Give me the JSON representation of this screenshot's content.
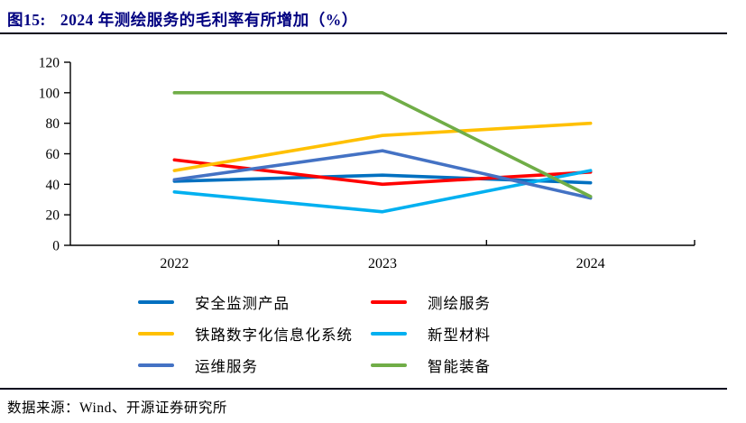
{
  "header": {
    "figure_label": "图15:",
    "title": "2024 年测绘服务的毛利率有所增加（%）"
  },
  "footer": {
    "source": "数据来源：Wind、开源证券研究所"
  },
  "chart_data": {
    "type": "line",
    "categories": [
      "2022",
      "2023",
      "2024"
    ],
    "series": [
      {
        "name": "安全监测产品",
        "color": "#0070C0",
        "values": [
          42,
          46,
          41
        ]
      },
      {
        "name": "测绘服务",
        "color": "#FF0000",
        "values": [
          56,
          40,
          48
        ]
      },
      {
        "name": "铁路数字化信息化系统",
        "color": "#FFC000",
        "values": [
          49,
          72,
          80
        ]
      },
      {
        "name": "新型材料",
        "color": "#00B0F0",
        "values": [
          35,
          22,
          49
        ]
      },
      {
        "name": "运维服务",
        "color": "#4472C4",
        "values": [
          43,
          62,
          31
        ]
      },
      {
        "name": "智能装备",
        "color": "#70AD47",
        "values": [
          100,
          100,
          32
        ]
      }
    ],
    "title": "2024 年测绘服务的毛利率有所增加（%）",
    "xlabel": "",
    "ylabel": "",
    "ylim": [
      0,
      120
    ],
    "yticks": [
      0,
      20,
      40,
      60,
      80,
      100,
      120
    ],
    "grid": false,
    "legend_position": "bottom",
    "axis_color": "#000000"
  }
}
